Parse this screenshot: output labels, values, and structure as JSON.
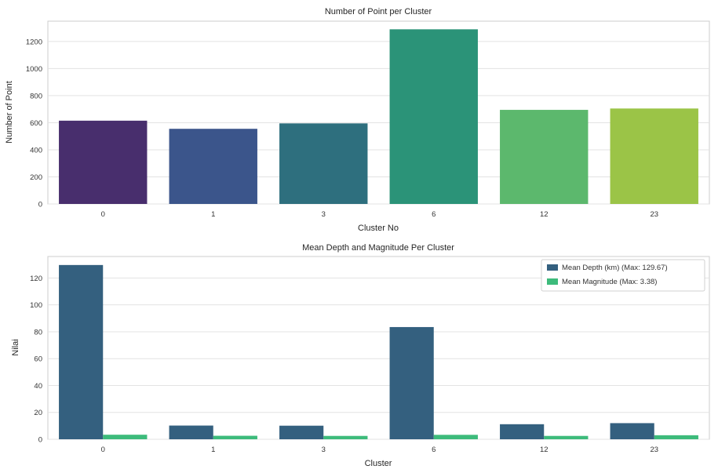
{
  "chart_data": [
    {
      "type": "bar",
      "title": "Number of Point per Cluster",
      "xlabel": "Cluster No",
      "ylabel": "Number of Point",
      "categories": [
        "0",
        "1",
        "3",
        "6",
        "12",
        "23"
      ],
      "values": [
        615,
        555,
        595,
        1290,
        695,
        705
      ],
      "ylim": [
        0,
        1350
      ],
      "yticks": [
        0,
        200,
        400,
        600,
        800,
        1000,
        1200
      ],
      "colors": [
        "#482e6d",
        "#3b558b",
        "#2e6f7e",
        "#2b9378",
        "#5cb86d",
        "#9bc447"
      ],
      "grid": true
    },
    {
      "type": "bar",
      "title": "Mean Depth and Magnitude Per Cluster",
      "xlabel": "Cluster",
      "ylabel": "Nilai",
      "categories": [
        "0",
        "1",
        "3",
        "6",
        "12",
        "23"
      ],
      "series": [
        {
          "name": "Mean Depth (km) (Max: 129.67)",
          "values": [
            129.67,
            10.2,
            10.1,
            83.5,
            11.2,
            12.0
          ],
          "color": "#34607f"
        },
        {
          "name": "Mean Magnitude (Max: 3.38)",
          "values": [
            3.38,
            2.6,
            2.5,
            3.3,
            2.5,
            3.0
          ],
          "color": "#3dbb7b"
        }
      ],
      "ylim": [
        0,
        136
      ],
      "yticks": [
        0,
        20,
        40,
        60,
        80,
        100,
        120
      ],
      "legend": "top-right",
      "grid": true
    }
  ]
}
